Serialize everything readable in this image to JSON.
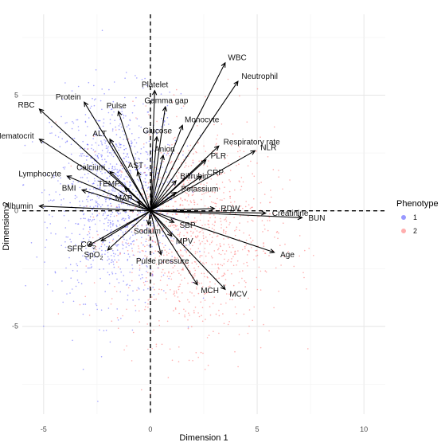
{
  "chart_data": {
    "type": "scatter",
    "subtype": "pca-biplot",
    "xlabel": "Dimension 1",
    "ylabel": "Dimension 2",
    "xlim": [
      -6,
      11
    ],
    "ylim": [
      -8.8,
      8.5
    ],
    "x_ticks": [
      -5,
      0,
      5,
      10
    ],
    "y_ticks": [
      -5,
      0,
      5
    ],
    "grid": true,
    "reference_lines": {
      "x": 0,
      "y": 0,
      "style": "dashed"
    },
    "legend": {
      "title": "Phenotype",
      "position": "right",
      "entries": [
        {
          "label": "1",
          "color": "#8080ff"
        },
        {
          "label": "2",
          "color": "#ff9a9a"
        }
      ]
    },
    "point_clouds": [
      {
        "phenotype": "1",
        "color": "#5a5aff",
        "center": [
          -1.6,
          0.6
        ],
        "spread": [
          1.5,
          2.2
        ],
        "count": 1100
      },
      {
        "phenotype": "2",
        "color": "#ff6b6b",
        "center": [
          2.0,
          -1.0
        ],
        "spread": [
          1.9,
          2.3
        ],
        "count": 1000
      }
    ],
    "loadings": [
      {
        "name": "WBC",
        "x": 3.5,
        "y": 6.4
      },
      {
        "name": "Neutrophil",
        "x": 4.1,
        "y": 5.6
      },
      {
        "name": "Platelet",
        "x": 0.2,
        "y": 5.2
      },
      {
        "name": "Gamma gap",
        "x": 0.7,
        "y": 4.5
      },
      {
        "name": "RBC",
        "x": -5.2,
        "y": 4.4
      },
      {
        "name": "Protein",
        "x": -3.1,
        "y": 4.7
      },
      {
        "name": "Pulse",
        "x": -1.5,
        "y": 4.3
      },
      {
        "name": "Monocyte",
        "x": 1.5,
        "y": 3.7
      },
      {
        "name": "Glucose",
        "x": 0.3,
        "y": 3.2
      },
      {
        "name": "Hematocrit",
        "x": -5.2,
        "y": 3.1
      },
      {
        "name": "ALT",
        "x": -1.9,
        "y": 3.1
      },
      {
        "name": "Respiratory rate",
        "x": 3.2,
        "y": 2.8
      },
      {
        "name": "NLR",
        "x": 4.9,
        "y": 2.6
      },
      {
        "name": "Anion",
        "x": 0.6,
        "y": 2.4
      },
      {
        "name": "PLR",
        "x": 2.6,
        "y": 2.2
      },
      {
        "name": "Calcium",
        "x": -1.9,
        "y": 1.7
      },
      {
        "name": "AST",
        "x": -0.6,
        "y": 1.7
      },
      {
        "name": "CRP",
        "x": 2.4,
        "y": 1.5
      },
      {
        "name": "Bilirubin",
        "x": 1.2,
        "y": 1.3
      },
      {
        "name": "Lymphocyte",
        "x": -3.9,
        "y": 1.5
      },
      {
        "name": "TEMP",
        "x": -1.2,
        "y": 1.0
      },
      {
        "name": "Potassium",
        "x": 1.2,
        "y": 0.8
      },
      {
        "name": "BMI",
        "x": -3.2,
        "y": 0.9
      },
      {
        "name": "MAP",
        "x": -0.6,
        "y": 0.4
      },
      {
        "name": "Albumin",
        "x": -5.2,
        "y": 0.2
      },
      {
        "name": "RDW",
        "x": 3.0,
        "y": 0.1
      },
      {
        "name": "Creatinine",
        "x": 5.4,
        "y": -0.1
      },
      {
        "name": "BUN",
        "x": 7.1,
        "y": -0.3
      },
      {
        "name": "Sodium",
        "x": -0.1,
        "y": -0.6
      },
      {
        "name": "SBP",
        "x": 1.1,
        "y": -0.5
      },
      {
        "name": "CO2",
        "x": -2.3,
        "y": -1.3
      },
      {
        "name": "MPV",
        "x": 1.0,
        "y": -1.1
      },
      {
        "name": "SFR",
        "x": -2.9,
        "y": -1.5
      },
      {
        "name": "SpO2",
        "x": -2.0,
        "y": -1.7
      },
      {
        "name": "Pulse pressure",
        "x": 0.5,
        "y": -1.9
      },
      {
        "name": "Age",
        "x": 5.8,
        "y": -1.8
      },
      {
        "name": "MCH",
        "x": 2.2,
        "y": -3.2
      },
      {
        "name": "MCV",
        "x": 3.5,
        "y": -3.4
      }
    ]
  }
}
